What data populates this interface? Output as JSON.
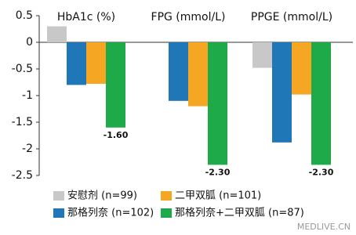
{
  "chart_data": {
    "type": "bar",
    "categories": [
      "HbA1c (%)",
      "FPG (mmol/L)",
      "PPGE (mmol/L)"
    ],
    "series": [
      {
        "name": "安慰剂 (n=99)",
        "color": "#c8c8c8",
        "values": [
          0.3,
          null,
          -0.48
        ]
      },
      {
        "name": "那格列奈 (n=102)",
        "color": "#1f77b8",
        "values": [
          -0.8,
          -1.1,
          -1.88
        ]
      },
      {
        "name": "二甲双胍 (n=101)",
        "color": "#f5a623",
        "values": [
          -0.78,
          -1.2,
          -0.98
        ]
      },
      {
        "name": "那格列奈+二甲双胍 (n=87)",
        "color": "#1faa4a",
        "values": [
          -1.6,
          -2.3,
          -2.3
        ],
        "value_labels": [
          "-1.60",
          "-2.30",
          "-2.30"
        ]
      }
    ],
    "ylim": [
      -2.5,
      0.5
    ],
    "yticks": [
      0.5,
      0,
      -0.5,
      -1,
      -1.5,
      -2,
      -2.5
    ],
    "grid": false,
    "watermark": "MEDLIVE.CN"
  }
}
